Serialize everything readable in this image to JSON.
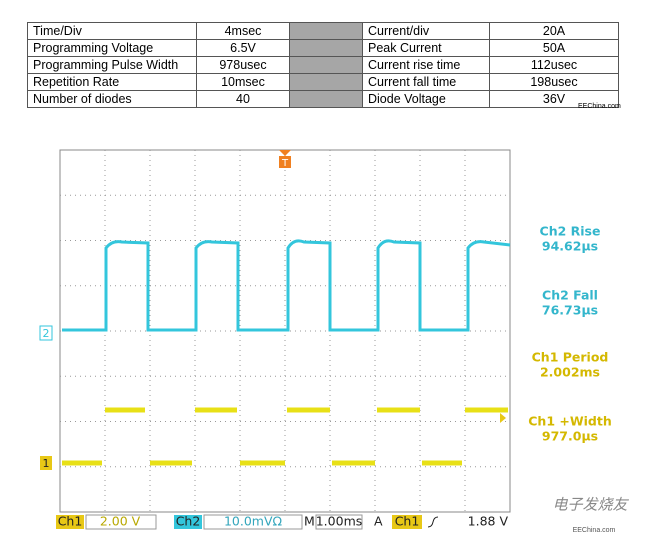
{
  "table": {
    "rows": [
      [
        "Time/Div",
        "4msec",
        "Current/div",
        "20A"
      ],
      [
        "Programming Voltage",
        "6.5V",
        "Peak Current",
        "50A"
      ],
      [
        "Programming Pulse Width",
        "978usec",
        "Current rise time",
        "112usec"
      ],
      [
        "Repetition Rate",
        "10msec",
        "Current fall time",
        "198usec"
      ],
      [
        "Number of diodes",
        "40",
        "Diode Voltage",
        "36V"
      ]
    ]
  },
  "watermark_top": "EEChina.com",
  "scope": {
    "markers": {
      "ch2": "2",
      "ch1": "1",
      "trigger": "T"
    },
    "measurements": [
      {
        "label": "Ch2 Rise",
        "value": "94.62µs"
      },
      {
        "label": "Ch2 Fall",
        "value": "76.73µs"
      },
      {
        "label": "Ch1 Period",
        "value": "2.002ms"
      },
      {
        "label": "Ch1 +Width",
        "value": "977.0µs"
      }
    ],
    "status_bar": {
      "ch1": "Ch1",
      "ch1_scale": "2.00 V",
      "ch2": "Ch2",
      "ch2_scale": "10.0mVΩ",
      "timebase_label": "M",
      "timebase": "1.00ms",
      "trigger_mode": "A",
      "trigger_source": "Ch1",
      "trigger_level": "1.88 V"
    }
  },
  "watermark_bottom": {
    "logo": "电子发烧友",
    "site": "EEChina.com"
  }
}
